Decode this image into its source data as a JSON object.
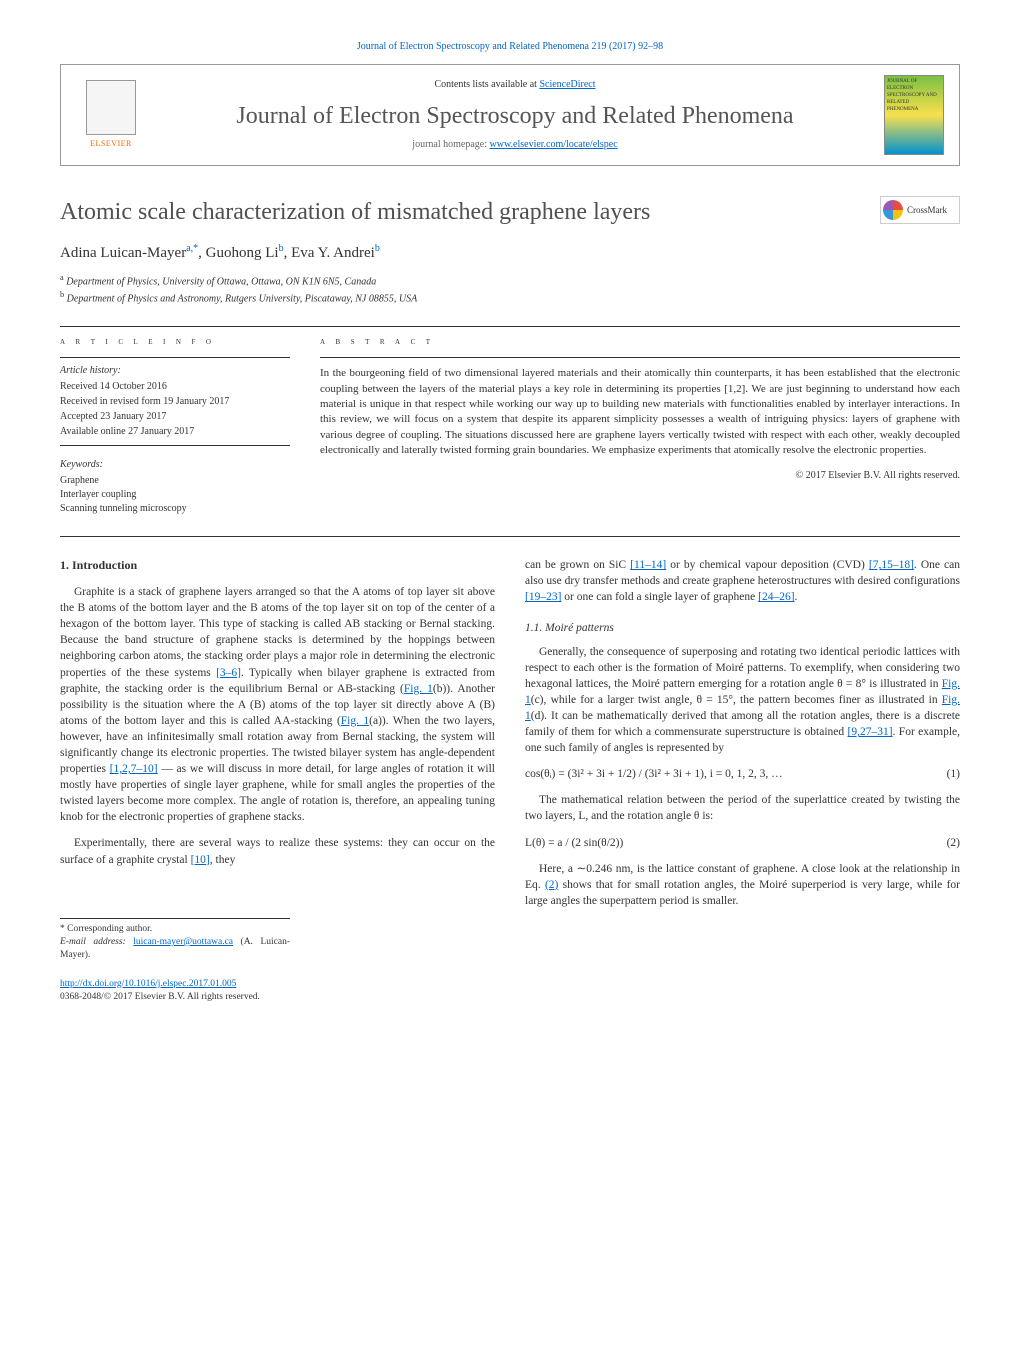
{
  "journal": {
    "header_ref": "Journal of Electron Spectroscopy and Related Phenomena 219 (2017) 92–98",
    "contents_prefix": "Contents lists available at ",
    "contents_link": "ScienceDirect",
    "title": "Journal of Electron Spectroscopy and Related Phenomena",
    "homepage_prefix": "journal homepage: ",
    "homepage_link": "www.elsevier.com/locate/elspec",
    "elsevier_label": "ELSEVIER",
    "cover_text": "JOURNAL OF ELECTRON SPECTROSCOPY AND RELATED PHENOMENA"
  },
  "crossmark": {
    "label": "CrossMark"
  },
  "article": {
    "title": "Atomic scale characterization of mismatched graphene layers",
    "authors_html_parts": {
      "a1_name": "Adina Luican-Mayer",
      "a1_sup": "a,*",
      "a2_name": "Guohong Li",
      "a2_sup": "b",
      "a3_name": "Eva Y. Andrei",
      "a3_sup": "b"
    },
    "affiliations": {
      "a": "Department of Physics, University of Ottawa, Ottawa, ON K1N 6N5, Canada",
      "b": "Department of Physics and Astronomy, Rutgers University, Piscataway, NJ 08855, USA"
    }
  },
  "info": {
    "heading": "a r t i c l e   i n f o",
    "history_label": "Article history:",
    "history": {
      "received": "Received 14 October 2016",
      "revised": "Received in revised form 19 January 2017",
      "accepted": "Accepted 23 January 2017",
      "online": "Available online 27 January 2017"
    },
    "keywords_label": "Keywords:",
    "keywords": [
      "Graphene",
      "Interlayer coupling",
      "Scanning tunneling microscopy"
    ]
  },
  "abstract": {
    "heading": "a b s t r a c t",
    "text": "In the bourgeoning field of two dimensional layered materials and their atomically thin counterparts, it has been established that the electronic coupling between the layers of the material plays a key role in determining its properties [1,2]. We are just beginning to understand how each material is unique in that respect while working our way up to building new materials with functionalities enabled by interlayer interactions. In this review, we will focus on a system that despite its apparent simplicity possesses a wealth of intriguing physics: layers of graphene with various degree of coupling. The situations discussed here are graphene layers vertically twisted with respect with each other, weakly decoupled electronically and laterally twisted forming grain boundaries. We emphasize experiments that atomically resolve the electronic properties.",
    "copyright": "© 2017 Elsevier B.V. All rights reserved."
  },
  "body": {
    "sec1_heading": "1. Introduction",
    "sec1_p1a": "Graphite is a stack of graphene layers arranged so that the A atoms of top layer sit above the B atoms of the bottom layer and the B atoms of the top layer sit on top of the center of a hexagon of the bottom layer. This type of stacking is called AB stacking or Bernal stacking. Because the band structure of graphene stacks is determined by the hoppings between neighboring carbon atoms, the stacking order plays a major role in determining the electronic properties of the these systems ",
    "ref_3_6": "[3–6]",
    "sec1_p1b": ". Typically when bilayer graphene is extracted from graphite, the stacking order is the equilibrium Bernal or AB-stacking (",
    "fig1b": "Fig. 1",
    "sec1_p1c": "(b)). Another possibility is the situation where the A (B) atoms of the top layer sit directly above A (B) atoms of the bottom layer and this is called AA-stacking (",
    "fig1a": "Fig. 1",
    "sec1_p1d": "(a)). When the two layers, however, have an infinitesimally small rotation away from Bernal stacking, the system will significantly change its electronic properties. The twisted bilayer system has angle-dependent properties ",
    "ref_1_2_7_10": "[1,2,7–10]",
    "sec1_p1e": " — as we will discuss in more detail, for large angles of rotation it will mostly have properties of single layer graphene, while for small angles the properties of the twisted layers become more complex. The angle of rotation is, therefore, an appealing tuning knob for the electronic properties of graphene stacks.",
    "sec1_p2a": "Experimentally, there are several ways to realize these systems: they can occur on the surface of a graphite crystal ",
    "ref_10": "[10]",
    "sec1_p2b": ", they",
    "col2_p1a": "can be grown on SiC ",
    "ref_11_14": "[11–14]",
    "col2_p1b": " or by chemical vapour deposition (CVD) ",
    "ref_7_15_18": "[7,15–18]",
    "col2_p1c": ". One can also use dry transfer methods and create graphene heterostructures with desired configurations ",
    "ref_19_23": "[19–23]",
    "col2_p1d": " or one can fold a single layer of graphene ",
    "ref_24_26": "[24–26]",
    "col2_p1e": ".",
    "sec11_heading": "1.1. Moiré patterns",
    "sec11_p1a": "Generally, the consequence of superposing and rotating two identical periodic lattices with respect to each other is the formation of Moiré patterns. To exemplify, when considering two hexagonal lattices, the Moiré pattern emerging for a rotation angle θ = 8° is illustrated in ",
    "fig1c": "Fig. 1",
    "sec11_p1b": "(c), while for a larger twist angle, θ = 15°, the pattern becomes finer as illustrated in ",
    "fig1d": "Fig. 1",
    "sec11_p1c": "(d). It can be mathematically derived that among all the rotation angles, there is a discrete family of them for which a commensurate superstructure is obtained ",
    "ref_9_27_31": "[9,27–31]",
    "sec11_p1d": ". For example, one such family of angles is represented by",
    "eq1": "cos(θᵢ) = (3i² + 3i + 1/2) / (3i² + 3i + 1), i = 0, 1, 2, 3, …",
    "eq1_num": "(1)",
    "sec11_p2": "The mathematical relation between the period of the superlattice created by twisting the two layers, L, and the rotation angle θ is:",
    "eq2": "L(θ) = a / (2 sin(θ/2))",
    "eq2_num": "(2)",
    "sec11_p3a": "Here, a ∼0.246 nm, is the lattice constant of graphene. A close look at the relationship in Eq. ",
    "eq2_ref": "(2)",
    "sec11_p3b": " shows that for small rotation angles, the Moiré superperiod is very large, while for large angles the superpattern period is smaller."
  },
  "footnote": {
    "corr_label": "* Corresponding author.",
    "email_label": "E-mail address: ",
    "email": "luican-mayer@uottawa.ca",
    "email_suffix": " (A. Luican-Mayer)."
  },
  "doi": {
    "url": "http://dx.doi.org/10.1016/j.elspec.2017.01.005",
    "issn_line": "0368-2048/© 2017 Elsevier B.V. All rights reserved."
  },
  "colors": {
    "link": "#0066cc",
    "elsevier_orange": "#ff6600",
    "text_gray": "#505050",
    "rule": "#333333"
  },
  "typography": {
    "body_pt": 11.5,
    "abstract_pt": 11,
    "title_pt": 24,
    "journal_title_pt": 24,
    "info_pt": 10,
    "footnote_pt": 9.5
  }
}
